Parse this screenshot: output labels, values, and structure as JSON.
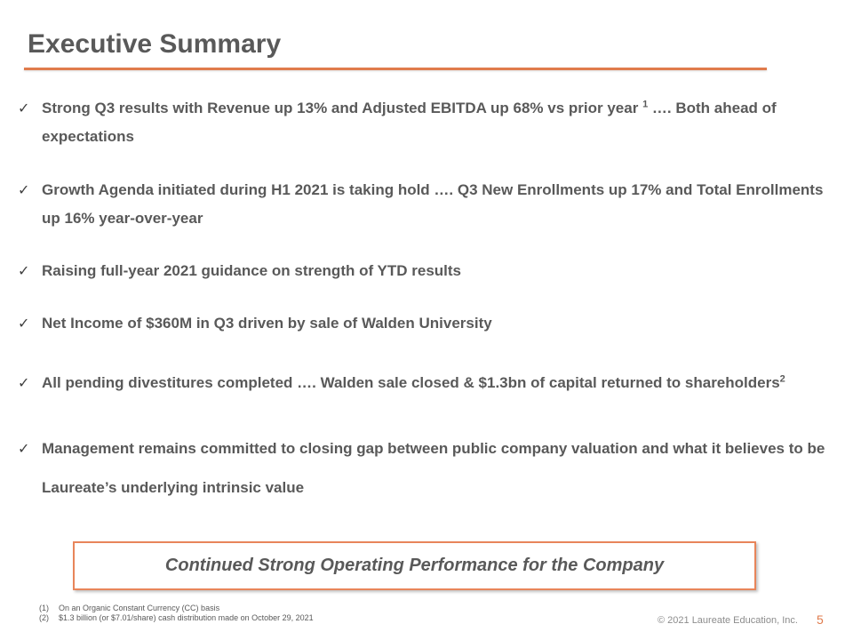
{
  "slide": {
    "title": "Executive Summary",
    "check_glyph": "✓",
    "bullets": [
      {
        "text": "Strong Q3 results with Revenue up 13% and Adjusted EBITDA up 68% vs prior year ",
        "sup": "1",
        "text_after": " …. Both ahead of expectations"
      },
      {
        "text": "Growth Agenda initiated during H1 2021 is taking hold …. Q3 New Enrollments up 17% and Total Enrollments up 16% year-over-year"
      },
      {
        "text": "Raising full-year 2021 guidance on strength of YTD results"
      },
      {
        "text": "Net Income of $360M in Q3 driven by sale of Walden University"
      },
      {
        "text": "All pending divestitures completed ….  Walden sale closed & $1.3bn of capital returned to shareholders",
        "sup": "2"
      },
      {
        "text": "Management remains committed to closing gap between public company valuation and what it believes to be Laureate’s underlying intrinsic value"
      }
    ],
    "callout": "Continued Strong Operating Performance for the Company",
    "footnotes": [
      {
        "num": "(1)",
        "text": "On an Organic Constant Currency (CC) basis"
      },
      {
        "num": "(2)",
        "text": "$1.3 billion (or $7.01/share) cash distribution made on October 29, 2021"
      }
    ],
    "copyright": "© 2021 Laureate Education, Inc.",
    "page_number": "5",
    "colors": {
      "accent": "#e07b4c",
      "text": "#595959",
      "muted": "#8c8c8c"
    }
  }
}
